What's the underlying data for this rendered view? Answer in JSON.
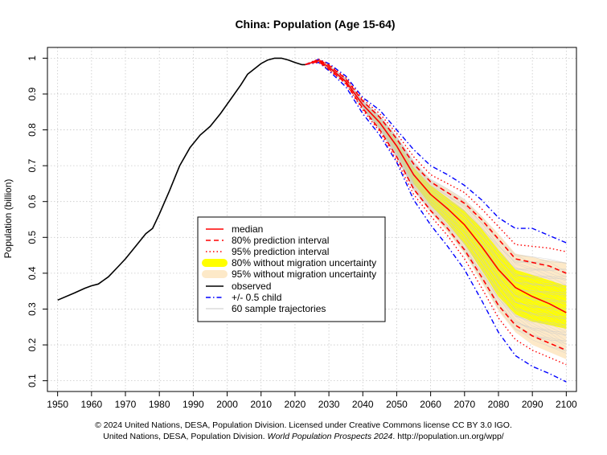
{
  "chart_data": {
    "type": "line",
    "title": "China: Population (Age 15-64)",
    "xlabel": "",
    "ylabel": "Population (billion)",
    "xlim": [
      1947,
      2103
    ],
    "ylim": [
      0.07,
      1.03
    ],
    "xticks": [
      1950,
      1960,
      1970,
      1980,
      1990,
      2000,
      2010,
      2020,
      2030,
      2040,
      2050,
      2060,
      2070,
      2080,
      2090,
      2100
    ],
    "yticks": [
      0.1,
      0.2,
      0.3,
      0.4,
      0.5,
      0.6,
      0.7,
      0.8,
      0.9,
      1
    ],
    "ytick_labels": [
      "0.1",
      "0.2",
      "0.3",
      "0.4",
      "0.5",
      "0.6",
      "0.7",
      "0.8",
      "0.9",
      "1"
    ],
    "grid": true,
    "legend_position": "center",
    "legend": [
      {
        "label": "median",
        "color": "#ff0000",
        "style": "solid"
      },
      {
        "label": "80% prediction interval",
        "color": "#ff0000",
        "style": "dashed"
      },
      {
        "label": "95% prediction interval",
        "color": "#ff0000",
        "style": "dotted"
      },
      {
        "label": "80% without migration uncertainty",
        "color": "#ffff00",
        "style": "band"
      },
      {
        "label": "95% without migration uncertainty",
        "color": "#fde9c8",
        "style": "band"
      },
      {
        "label": "observed",
        "color": "#000000",
        "style": "solid"
      },
      {
        "label": "+/- 0.5 child",
        "color": "#0000ff",
        "style": "dashdot"
      },
      {
        "label": "60 sample trajectories",
        "color": "#c8c8c8",
        "style": "thin"
      }
    ],
    "observed": {
      "x": [
        1950,
        1955,
        1958,
        1960,
        1962,
        1965,
        1968,
        1970,
        1973,
        1976,
        1978,
        1980,
        1983,
        1986,
        1989,
        1992,
        1995,
        1998,
        2001,
        2004,
        2006,
        2008,
        2010,
        2012,
        2014,
        2016,
        2018,
        2020,
        2022,
        2023
      ],
      "y": [
        0.325,
        0.345,
        0.358,
        0.365,
        0.37,
        0.39,
        0.42,
        0.44,
        0.475,
        0.51,
        0.525,
        0.565,
        0.63,
        0.7,
        0.75,
        0.785,
        0.81,
        0.845,
        0.885,
        0.925,
        0.955,
        0.97,
        0.985,
        0.995,
        1.0,
        1.0,
        0.995,
        0.988,
        0.982,
        0.982
      ]
    },
    "projection_x": [
      2023,
      2025,
      2027,
      2030,
      2035,
      2040,
      2045,
      2050,
      2055,
      2060,
      2065,
      2070,
      2075,
      2080,
      2085,
      2090,
      2095,
      2100
    ],
    "median": [
      0.982,
      0.988,
      0.993,
      0.975,
      0.935,
      0.87,
      0.82,
      0.755,
      0.675,
      0.62,
      0.58,
      0.535,
      0.475,
      0.41,
      0.36,
      0.335,
      0.315,
      0.29
    ],
    "pi80_low": [
      0.982,
      0.987,
      0.99,
      0.97,
      0.93,
      0.86,
      0.8,
      0.725,
      0.635,
      0.575,
      0.525,
      0.465,
      0.39,
      0.31,
      0.255,
      0.225,
      0.205,
      0.185
    ],
    "pi80_high": [
      0.982,
      0.989,
      0.996,
      0.98,
      0.942,
      0.88,
      0.835,
      0.775,
      0.705,
      0.655,
      0.625,
      0.595,
      0.55,
      0.495,
      0.44,
      0.43,
      0.42,
      0.4
    ],
    "pi95_low": [
      0.982,
      0.986,
      0.989,
      0.968,
      0.928,
      0.855,
      0.795,
      0.715,
      0.62,
      0.56,
      0.505,
      0.44,
      0.36,
      0.275,
      0.215,
      0.185,
      0.165,
      0.145
    ],
    "pi95_high": [
      0.982,
      0.99,
      0.997,
      0.982,
      0.945,
      0.885,
      0.845,
      0.79,
      0.725,
      0.675,
      0.65,
      0.625,
      0.58,
      0.53,
      0.48,
      0.475,
      0.47,
      0.46
    ],
    "band80_low": [
      0.982,
      0.987,
      0.991,
      0.972,
      0.932,
      0.862,
      0.805,
      0.735,
      0.65,
      0.59,
      0.54,
      0.48,
      0.41,
      0.335,
      0.285,
      0.265,
      0.255,
      0.245
    ],
    "band80_high": [
      0.982,
      0.989,
      0.995,
      0.978,
      0.94,
      0.876,
      0.83,
      0.77,
      0.695,
      0.645,
      0.61,
      0.575,
      0.525,
      0.465,
      0.41,
      0.395,
      0.38,
      0.365
    ],
    "band95_low": [
      0.982,
      0.986,
      0.99,
      0.97,
      0.93,
      0.858,
      0.8,
      0.725,
      0.635,
      0.57,
      0.515,
      0.455,
      0.375,
      0.295,
      0.235,
      0.2,
      0.18,
      0.16
    ],
    "band95_high": [
      0.982,
      0.99,
      0.996,
      0.98,
      0.943,
      0.882,
      0.84,
      0.78,
      0.71,
      0.66,
      0.635,
      0.605,
      0.56,
      0.51,
      0.455,
      0.445,
      0.435,
      0.43
    ],
    "child_low": [
      0.982,
      0.985,
      0.988,
      0.965,
      0.92,
      0.845,
      0.785,
      0.71,
      0.605,
      0.535,
      0.475,
      0.41,
      0.325,
      0.235,
      0.17,
      0.14,
      0.12,
      0.097
    ],
    "child_high": [
      0.982,
      0.99,
      0.997,
      0.985,
      0.95,
      0.89,
      0.855,
      0.8,
      0.745,
      0.7,
      0.675,
      0.645,
      0.605,
      0.555,
      0.525,
      0.525,
      0.505,
      0.485
    ]
  },
  "legend_labels": {
    "l0": "median",
    "l1": "80% prediction interval",
    "l2": "95% prediction interval",
    "l3": "80% without migration uncertainty",
    "l4": "95% without migration uncertainty",
    "l5": "observed",
    "l6": "+/- 0.5 child",
    "l7": "60 sample trajectories"
  },
  "footer": {
    "line1": "© 2024 United Nations, DESA, Population Division. Licensed under Creative Commons license CC BY 3.0 IGO.",
    "line2_prefix": "United Nations, DESA, Population Division. ",
    "line2_title": "World Population Prospects 2024",
    "line2_suffix": ". http://population.un.org/wpp/"
  },
  "colors": {
    "median": "#ff0000",
    "prediction": "#ff0000",
    "band80": "#ffff00",
    "band95": "#fde9c8",
    "observed": "#000000",
    "child": "#0000ff",
    "trajectory": "#c8c8c8"
  }
}
